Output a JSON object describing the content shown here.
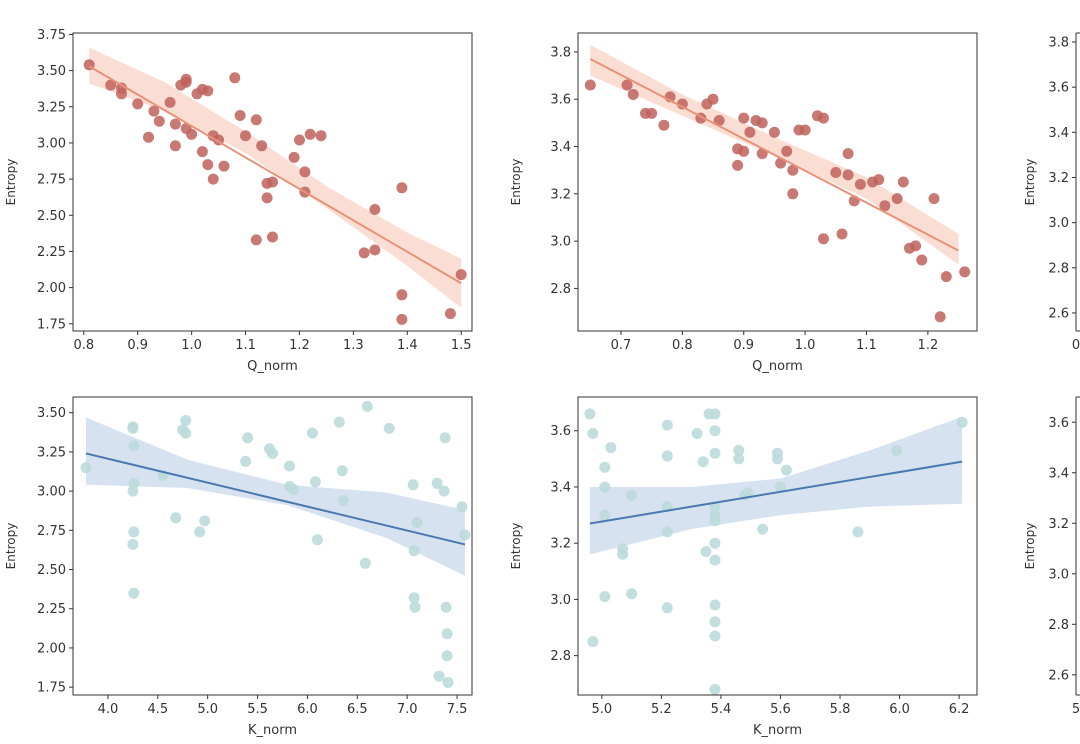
{
  "colors": {
    "q_points": "#c0625c",
    "q_line": "#e8927a",
    "q_band": "#f9d3c4",
    "k_points": "#bcdada",
    "k_line": "#4a78b0",
    "k_band": "#c9d8ec",
    "axis": "#333333"
  },
  "chart_data": [
    {
      "id": "top-left",
      "type": "scatter",
      "panel": "top-left",
      "kind": "q",
      "xlabel": "Q_norm",
      "ylabel": "Entropy",
      "xlim": [
        0.78,
        1.52
      ],
      "ylim": [
        1.7,
        3.76
      ],
      "xticks": [
        0.8,
        0.9,
        1.0,
        1.1,
        1.2,
        1.3,
        1.4,
        1.5
      ],
      "xtick_labels": [
        "0.8",
        "0.9",
        "1.0",
        "1.1",
        "1.2",
        "1.3",
        "1.4",
        "1.5"
      ],
      "yticks": [
        1.75,
        2.0,
        2.25,
        2.5,
        2.75,
        3.0,
        3.25,
        3.5,
        3.75
      ],
      "ytick_labels": [
        "1.75",
        "2.00",
        "2.25",
        "2.50",
        "2.75",
        "3.00",
        "3.25",
        "3.50",
        "3.75"
      ],
      "points": [
        [
          0.81,
          3.54
        ],
        [
          0.85,
          3.4
        ],
        [
          0.87,
          3.34
        ],
        [
          0.87,
          3.38
        ],
        [
          0.9,
          3.27
        ],
        [
          0.92,
          3.04
        ],
        [
          0.93,
          3.22
        ],
        [
          0.94,
          3.15
        ],
        [
          0.96,
          3.28
        ],
        [
          0.97,
          3.13
        ],
        [
          0.97,
          2.98
        ],
        [
          0.98,
          3.4
        ],
        [
          0.99,
          3.44
        ],
        [
          0.99,
          3.1
        ],
        [
          0.99,
          3.42
        ],
        [
          1.0,
          3.06
        ],
        [
          1.01,
          3.34
        ],
        [
          1.02,
          3.37
        ],
        [
          1.02,
          2.94
        ],
        [
          1.03,
          3.36
        ],
        [
          1.03,
          2.85
        ],
        [
          1.04,
          2.75
        ],
        [
          1.04,
          3.05
        ],
        [
          1.05,
          3.02
        ],
        [
          1.06,
          2.84
        ],
        [
          1.08,
          3.45
        ],
        [
          1.09,
          3.19
        ],
        [
          1.1,
          3.05
        ],
        [
          1.12,
          3.16
        ],
        [
          1.12,
          2.33
        ],
        [
          1.13,
          2.98
        ],
        [
          1.14,
          2.62
        ],
        [
          1.14,
          2.72
        ],
        [
          1.15,
          2.73
        ],
        [
          1.15,
          2.35
        ],
        [
          1.19,
          2.9
        ],
        [
          1.2,
          3.02
        ],
        [
          1.21,
          2.8
        ],
        [
          1.21,
          2.66
        ],
        [
          1.22,
          3.06
        ],
        [
          1.24,
          3.05
        ],
        [
          1.32,
          2.24
        ],
        [
          1.34,
          2.54
        ],
        [
          1.34,
          2.26
        ],
        [
          1.39,
          2.69
        ],
        [
          1.39,
          1.95
        ],
        [
          1.39,
          1.78
        ],
        [
          1.48,
          1.82
        ],
        [
          1.5,
          2.09
        ]
      ],
      "fit": {
        "x": [
          0.81,
          1.5
        ],
        "y": [
          3.53,
          2.03
        ]
      },
      "band": {
        "x": [
          0.81,
          0.95,
          1.1,
          1.25,
          1.4,
          1.5
        ],
        "lower": [
          3.41,
          3.22,
          2.93,
          2.55,
          2.15,
          1.86
        ],
        "upper": [
          3.66,
          3.42,
          3.08,
          2.7,
          2.38,
          2.2
        ]
      }
    },
    {
      "id": "top-right",
      "type": "scatter",
      "panel": "top-right",
      "kind": "q",
      "xlabel": "Q_norm",
      "ylabel": "Entropy",
      "xlim": [
        0.63,
        1.28
      ],
      "ylim": [
        2.62,
        3.88
      ],
      "xticks": [
        0.7,
        0.8,
        0.9,
        1.0,
        1.1,
        1.2
      ],
      "xtick_labels": [
        "0.7",
        "0.8",
        "0.9",
        "1.0",
        "1.1",
        "1.2"
      ],
      "yticks": [
        2.8,
        3.0,
        3.2,
        3.4,
        3.6,
        3.8
      ],
      "ytick_labels": [
        "2.8",
        "3.0",
        "3.2",
        "3.4",
        "3.6",
        "3.8"
      ],
      "points": [
        [
          0.65,
          3.66
        ],
        [
          0.71,
          3.66
        ],
        [
          0.72,
          3.62
        ],
        [
          0.74,
          3.54
        ],
        [
          0.75,
          3.54
        ],
        [
          0.77,
          3.49
        ],
        [
          0.78,
          3.61
        ],
        [
          0.8,
          3.58
        ],
        [
          0.83,
          3.52
        ],
        [
          0.84,
          3.58
        ],
        [
          0.85,
          3.6
        ],
        [
          0.86,
          3.51
        ],
        [
          0.89,
          3.39
        ],
        [
          0.89,
          3.32
        ],
        [
          0.9,
          3.38
        ],
        [
          0.9,
          3.52
        ],
        [
          0.91,
          3.46
        ],
        [
          0.92,
          3.51
        ],
        [
          0.93,
          3.5
        ],
        [
          0.93,
          3.37
        ],
        [
          0.95,
          3.46
        ],
        [
          0.96,
          3.33
        ],
        [
          0.97,
          3.38
        ],
        [
          0.98,
          3.2
        ],
        [
          0.98,
          3.3
        ],
        [
          0.99,
          3.47
        ],
        [
          1.0,
          3.47
        ],
        [
          1.02,
          3.53
        ],
        [
          1.03,
          3.52
        ],
        [
          1.03,
          3.01
        ],
        [
          1.05,
          3.29
        ],
        [
          1.06,
          3.03
        ],
        [
          1.07,
          3.28
        ],
        [
          1.07,
          3.37
        ],
        [
          1.08,
          3.17
        ],
        [
          1.09,
          3.24
        ],
        [
          1.11,
          3.25
        ],
        [
          1.12,
          3.26
        ],
        [
          1.13,
          3.15
        ],
        [
          1.15,
          3.18
        ],
        [
          1.16,
          3.25
        ],
        [
          1.17,
          2.97
        ],
        [
          1.18,
          2.98
        ],
        [
          1.19,
          2.92
        ],
        [
          1.21,
          3.18
        ],
        [
          1.22,
          2.68
        ],
        [
          1.23,
          2.85
        ],
        [
          1.26,
          2.87
        ]
      ],
      "fit": {
        "x": [
          0.65,
          1.25
        ],
        "y": [
          3.77,
          2.96
        ]
      },
      "band": {
        "x": [
          0.65,
          0.8,
          0.95,
          1.1,
          1.25
        ],
        "lower": [
          3.7,
          3.53,
          3.36,
          3.18,
          2.9
        ],
        "upper": [
          3.83,
          3.62,
          3.44,
          3.27,
          3.03
        ]
      }
    },
    {
      "id": "bottom-left",
      "type": "scatter",
      "panel": "bottom-left",
      "kind": "k",
      "xlabel": "K_norm",
      "ylabel": "Entropy",
      "xlim": [
        3.65,
        7.65
      ],
      "ylim": [
        1.7,
        3.6
      ],
      "xticks": [
        4.0,
        4.5,
        5.0,
        5.5,
        6.0,
        6.5,
        7.0,
        7.5
      ],
      "xtick_labels": [
        "4.0",
        "4.5",
        "5.0",
        "5.5",
        "6.0",
        "6.5",
        "7.0",
        "7.5"
      ],
      "yticks": [
        1.75,
        2.0,
        2.25,
        2.5,
        2.75,
        3.0,
        3.25,
        3.5
      ],
      "ytick_labels": [
        "1.75",
        "2.00",
        "2.25",
        "2.50",
        "2.75",
        "3.00",
        "3.25",
        "3.50"
      ],
      "points": [
        [
          3.78,
          3.15
        ],
        [
          4.25,
          3.41
        ],
        [
          4.25,
          3.4
        ],
        [
          4.26,
          3.29
        ],
        [
          4.26,
          3.05
        ],
        [
          4.25,
          3.0
        ],
        [
          4.26,
          2.74
        ],
        [
          4.25,
          2.66
        ],
        [
          4.26,
          2.35
        ],
        [
          4.55,
          3.1
        ],
        [
          4.68,
          2.83
        ],
        [
          4.75,
          3.39
        ],
        [
          4.78,
          3.45
        ],
        [
          4.78,
          3.37
        ],
        [
          4.92,
          2.74
        ],
        [
          4.97,
          2.81
        ],
        [
          5.38,
          3.19
        ],
        [
          5.4,
          3.34
        ],
        [
          5.62,
          3.27
        ],
        [
          5.65,
          3.24
        ],
        [
          5.82,
          3.16
        ],
        [
          5.82,
          3.03
        ],
        [
          5.86,
          3.01
        ],
        [
          6.05,
          3.37
        ],
        [
          6.08,
          3.06
        ],
        [
          6.1,
          2.69
        ],
        [
          6.32,
          3.44
        ],
        [
          6.35,
          3.13
        ],
        [
          6.36,
          2.94
        ],
        [
          6.58,
          2.54
        ],
        [
          6.6,
          3.54
        ],
        [
          6.82,
          3.4
        ],
        [
          7.06,
          3.04
        ],
        [
          7.07,
          2.62
        ],
        [
          7.07,
          2.32
        ],
        [
          7.08,
          2.26
        ],
        [
          7.1,
          2.8
        ],
        [
          7.3,
          3.05
        ],
        [
          7.32,
          1.82
        ],
        [
          7.37,
          3.0
        ],
        [
          7.38,
          3.34
        ],
        [
          7.39,
          2.26
        ],
        [
          7.4,
          2.09
        ],
        [
          7.4,
          1.95
        ],
        [
          7.41,
          1.78
        ],
        [
          7.55,
          2.9
        ],
        [
          7.58,
          2.72
        ]
      ],
      "fit": {
        "x": [
          3.78,
          7.58
        ],
        "y": [
          3.24,
          2.66
        ]
      },
      "band": {
        "x": [
          3.78,
          4.8,
          5.8,
          6.8,
          7.58
        ],
        "lower": [
          3.04,
          3.02,
          2.91,
          2.7,
          2.46
        ],
        "upper": [
          3.47,
          3.2,
          3.04,
          2.99,
          2.88
        ]
      }
    },
    {
      "id": "bottom-right",
      "type": "scatter",
      "panel": "bottom-right",
      "kind": "k",
      "xlabel": "K_norm",
      "ylabel": "Entropy",
      "xlim": [
        4.92,
        6.26
      ],
      "ylim": [
        2.66,
        3.72
      ],
      "xticks": [
        5.0,
        5.2,
        5.4,
        5.6,
        5.8,
        6.0,
        6.2
      ],
      "xtick_labels": [
        "5.0",
        "5.2",
        "5.4",
        "5.6",
        "5.8",
        "6.0",
        "6.2"
      ],
      "yticks": [
        2.8,
        3.0,
        3.2,
        3.4,
        3.6
      ],
      "ytick_labels": [
        "2.8",
        "3.0",
        "3.2",
        "3.4",
        "3.6"
      ],
      "points": [
        [
          4.96,
          3.66
        ],
        [
          4.97,
          3.59
        ],
        [
          4.97,
          2.85
        ],
        [
          5.01,
          3.47
        ],
        [
          5.01,
          3.4
        ],
        [
          5.01,
          3.3
        ],
        [
          5.01,
          3.01
        ],
        [
          5.03,
          3.54
        ],
        [
          5.07,
          3.16
        ],
        [
          5.07,
          3.18
        ],
        [
          5.1,
          3.37
        ],
        [
          5.1,
          3.02
        ],
        [
          5.22,
          3.62
        ],
        [
          5.22,
          3.51
        ],
        [
          5.22,
          3.33
        ],
        [
          5.22,
          3.24
        ],
        [
          5.22,
          2.97
        ],
        [
          5.32,
          3.59
        ],
        [
          5.34,
          3.49
        ],
        [
          5.35,
          3.17
        ],
        [
          5.36,
          3.66
        ],
        [
          5.38,
          3.66
        ],
        [
          5.38,
          3.6
        ],
        [
          5.38,
          3.52
        ],
        [
          5.38,
          3.33
        ],
        [
          5.38,
          3.3
        ],
        [
          5.38,
          3.28
        ],
        [
          5.38,
          3.2
        ],
        [
          5.38,
          3.14
        ],
        [
          5.38,
          2.98
        ],
        [
          5.38,
          2.92
        ],
        [
          5.38,
          2.87
        ],
        [
          5.38,
          2.68
        ],
        [
          5.46,
          3.53
        ],
        [
          5.46,
          3.5
        ],
        [
          5.48,
          3.37
        ],
        [
          5.49,
          3.38
        ],
        [
          5.54,
          3.25
        ],
        [
          5.59,
          3.52
        ],
        [
          5.59,
          3.5
        ],
        [
          5.6,
          3.4
        ],
        [
          5.62,
          3.46
        ],
        [
          5.86,
          3.24
        ],
        [
          5.99,
          3.53
        ],
        [
          6.21,
          3.63
        ]
      ],
      "fit": {
        "x": [
          4.96,
          6.21
        ],
        "y": [
          3.27,
          3.49
        ]
      },
      "band": {
        "x": [
          4.96,
          5.3,
          5.6,
          5.9,
          6.21
        ],
        "lower": [
          3.16,
          3.25,
          3.3,
          3.33,
          3.34
        ],
        "upper": [
          3.4,
          3.4,
          3.43,
          3.53,
          3.65
        ]
      }
    },
    {
      "id": "right-top",
      "type": "scatter",
      "panel": "right-top-cropped",
      "kind": "q",
      "ylabel": "Entropy",
      "ylim": [
        2.52,
        3.84
      ],
      "yticks": [
        2.6,
        2.8,
        3.0,
        3.2,
        3.4,
        3.6,
        3.8
      ],
      "ytick_labels": [
        "2.6",
        "2.8",
        "3.0",
        "3.2",
        "3.4",
        "3.6",
        "3.8"
      ],
      "xtick_labels": [
        "0"
      ]
    },
    {
      "id": "right-bottom",
      "type": "scatter",
      "panel": "right-bottom-cropped",
      "kind": "k",
      "ylabel": "Entropy",
      "ylim": [
        2.52,
        3.7
      ],
      "yticks": [
        2.6,
        2.8,
        3.0,
        3.2,
        3.4,
        3.6
      ],
      "ytick_labels": [
        "2.6",
        "2.8",
        "3.0",
        "3.2",
        "3.4",
        "3.6"
      ],
      "xtick_labels": [
        "5"
      ]
    }
  ]
}
